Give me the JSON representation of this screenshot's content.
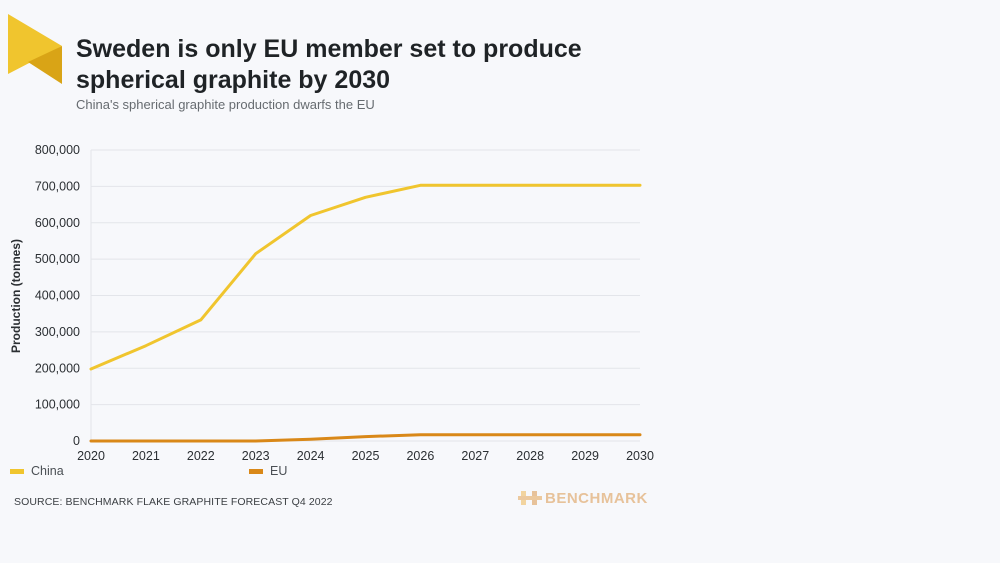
{
  "header": {
    "title": "Sweden is only EU member set to produce spherical graphite by 2030",
    "subtitle": "China's spherical graphite production dwarfs the EU"
  },
  "footer": {
    "source": "SOURCE: BENCHMARK FLAKE GRAPHITE FORECAST Q4 2022",
    "brand": "BENCHMARK"
  },
  "colors": {
    "china": "#f0c52e",
    "eu": "#d98818",
    "grid": "#e3e5ea",
    "text": "#2b2f33"
  },
  "chart_data": {
    "type": "line",
    "title": "Sweden is only EU member set to produce spherical graphite by 2030",
    "subtitle": "China's spherical graphite production dwarfs the EU",
    "xlabel": "",
    "ylabel": "Production (tonnes)",
    "x": [
      "2020",
      "2021",
      "2022",
      "2023",
      "2024",
      "2025",
      "2026",
      "2027",
      "2028",
      "2029",
      "2030"
    ],
    "ylim": [
      0,
      800000
    ],
    "yticks": [
      "0",
      "100,000",
      "200,000",
      "300,000",
      "400,000",
      "500,000",
      "600,000",
      "700,000",
      "800,000"
    ],
    "grid": true,
    "legend": "bottom-left",
    "series": [
      {
        "name": "China",
        "values": [
          198000,
          262000,
          333000,
          515000,
          620000,
          670000,
          703000,
          703000,
          703000,
          703000,
          703000
        ]
      },
      {
        "name": "EU",
        "values": [
          0,
          0,
          0,
          0,
          5000,
          12000,
          17000,
          17000,
          17000,
          17000,
          17000
        ]
      }
    ]
  }
}
